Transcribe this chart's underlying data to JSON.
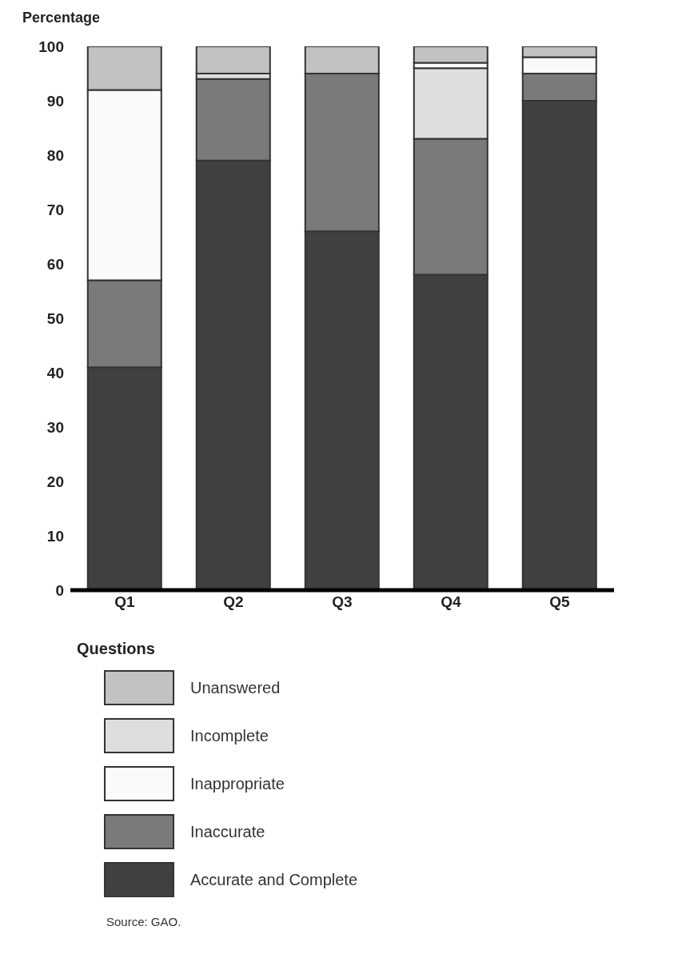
{
  "chart_data": {
    "type": "bar",
    "stacked": true,
    "ylabel": "Percentage",
    "xlabel": "Questions",
    "categories": [
      "Q1",
      "Q2",
      "Q3",
      "Q4",
      "Q5"
    ],
    "series": [
      {
        "name": "Accurate and Complete",
        "color": "#404040",
        "values": [
          41,
          79,
          66,
          58,
          90
        ]
      },
      {
        "name": "Inaccurate",
        "color": "#7a7a7a",
        "values": [
          16,
          15,
          29,
          25,
          5
        ]
      },
      {
        "name": "Incomplete",
        "color": "#dedede",
        "values": [
          0,
          1,
          0,
          13,
          0
        ]
      },
      {
        "name": "Inappropriate",
        "color": "#fafafa",
        "values": [
          35,
          0,
          0,
          1,
          3
        ]
      },
      {
        "name": "Unanswered",
        "color": "#c2c2c2",
        "values": [
          8,
          5,
          5,
          3,
          2
        ]
      }
    ],
    "ylim": [
      0,
      100
    ],
    "yticks": [
      0,
      10,
      20,
      30,
      40,
      50,
      60,
      70,
      80,
      90,
      100
    ],
    "grid": false,
    "legend": "bottom",
    "annotations": [
      "Source: GAO."
    ]
  }
}
